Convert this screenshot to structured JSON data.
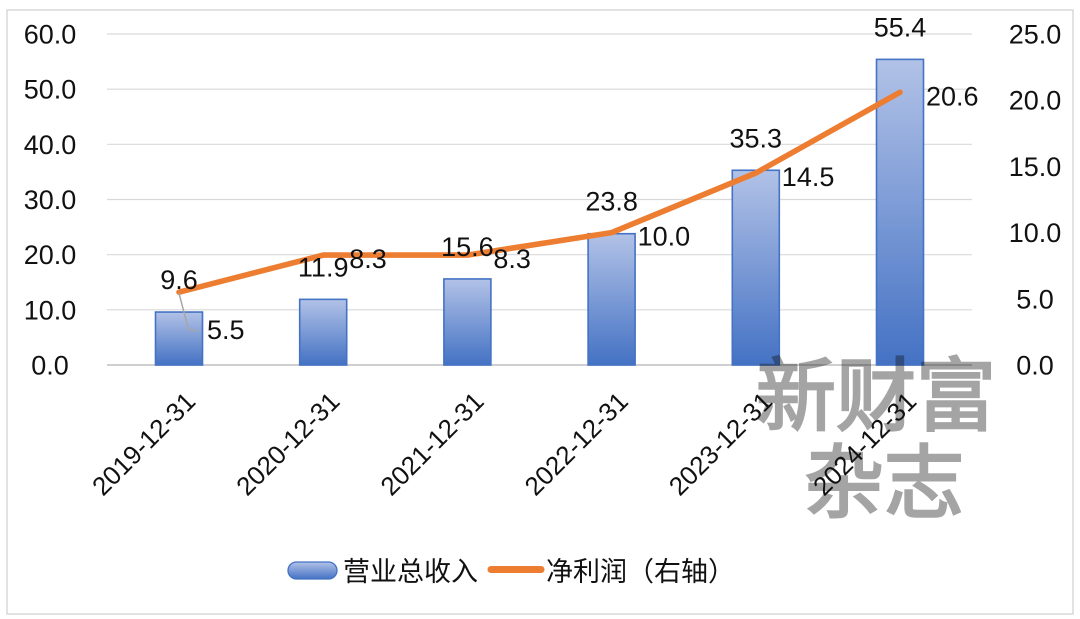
{
  "chart_data": {
    "type": "bar+line combo",
    "categories": [
      "2019-12-31",
      "2020-12-31",
      "2021-12-31",
      "2022-12-31",
      "2023-12-31",
      "2024-12-31"
    ],
    "series": [
      {
        "name": "营业总收入",
        "type": "bar",
        "axis": "left",
        "values": [
          9.6,
          11.9,
          15.6,
          23.8,
          35.3,
          55.4
        ],
        "labels": [
          "9.6",
          "11.9",
          "15.6",
          "23.8",
          "35.3",
          "55.4"
        ],
        "color": "#4472C4",
        "fill_gradient_top": "#B2C2E7",
        "fill_gradient_bottom": "#4472C4"
      },
      {
        "name": "净利润（右轴）",
        "type": "line",
        "axis": "right",
        "values": [
          5.5,
          8.3,
          8.3,
          10.0,
          14.5,
          20.6
        ],
        "labels": [
          "5.5",
          "8.3",
          "8.3",
          "10.0",
          "14.5",
          "20.6"
        ],
        "color": "#ED7D31"
      }
    ],
    "left_axis": {
      "min": 0,
      "max": 60,
      "step": 10,
      "tick_labels": [
        "0.0",
        "10.0",
        "20.0",
        "30.0",
        "40.0",
        "50.0",
        "60.0"
      ]
    },
    "right_axis": {
      "min": 0,
      "max": 25,
      "step": 5,
      "tick_labels": [
        "0.0",
        "5.0",
        "10.0",
        "15.0",
        "20.0",
        "25.0"
      ]
    },
    "grid": true,
    "gridline_color": "#D9D9D9",
    "axisline_color": "#BFBFBF",
    "leader_line_color": "#A6A6A6",
    "legend_position": "bottom",
    "data_labels": true,
    "title": "",
    "xlabel": "",
    "ylabel": ""
  },
  "legend": {
    "items": [
      {
        "label": "营业总收入",
        "swatch": "bar"
      },
      {
        "label": "净利润（右轴）",
        "swatch": "line"
      }
    ]
  },
  "watermark": {
    "line1": "新财富",
    "line2": "杂志",
    "color": "#C00000"
  },
  "frame_color": "#D9D9D9"
}
